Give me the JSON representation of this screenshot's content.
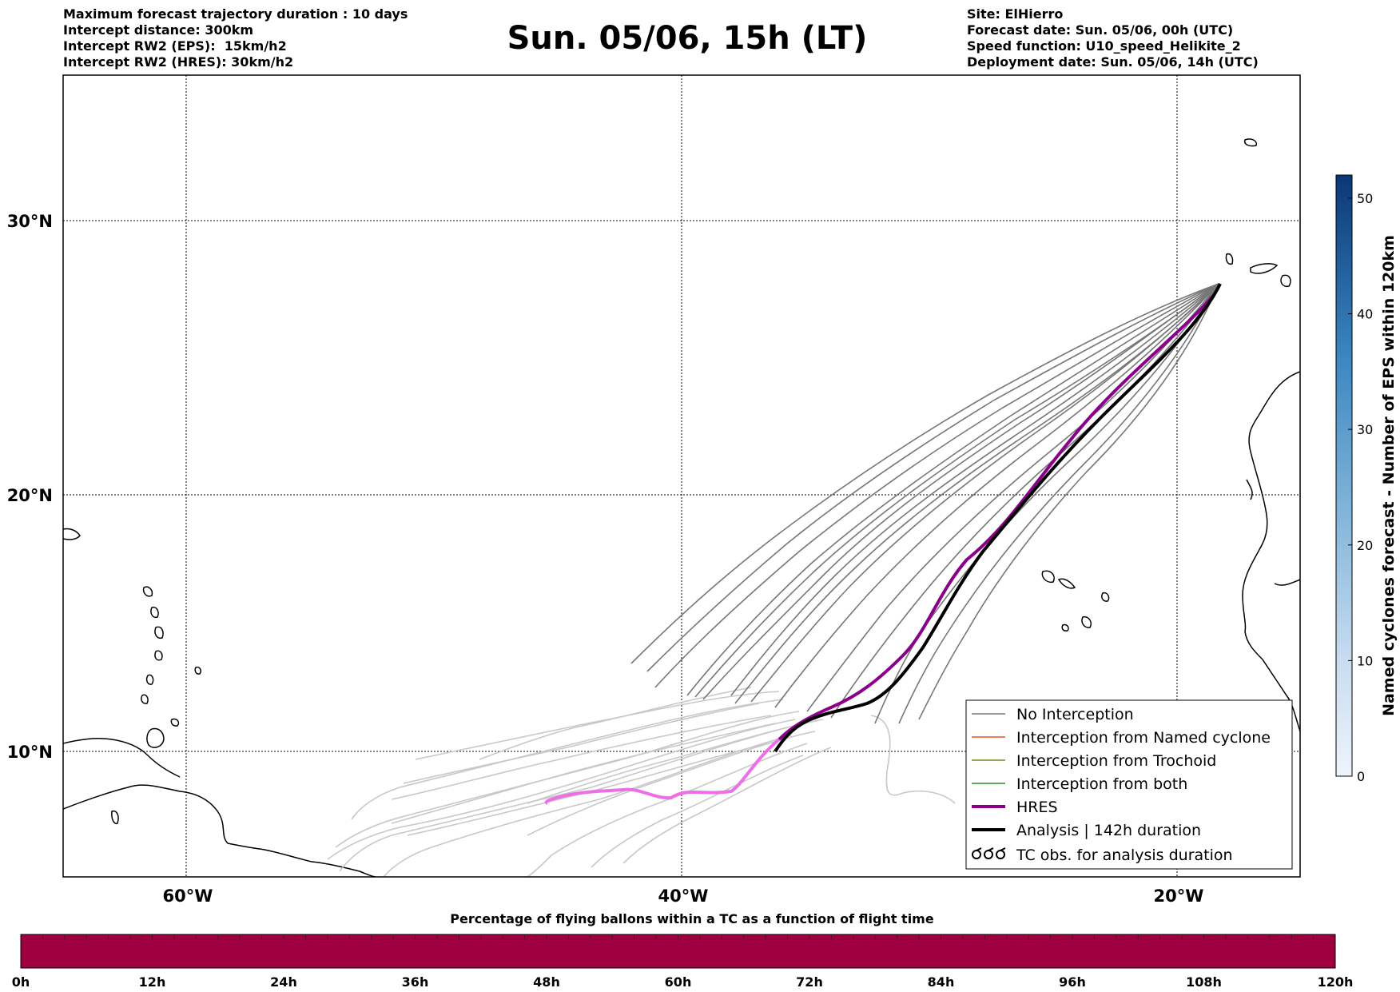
{
  "header": {
    "left": [
      "Maximum forecast trajectory duration : 10 days",
      "Intercept distance: 300km",
      "Intercept RW2 (EPS):  15km/h2",
      "Intercept RW2 (HRES): 30km/h2"
    ],
    "title": "Sun. 05/06, 15h (LT)",
    "right": [
      "Site: ElHierro",
      "Forecast date: Sun. 05/06, 00h (UTC)",
      "Speed function: U10_speed_Helikite_2",
      "Deployment date: Sun. 05/06, 14h (UTC)"
    ]
  },
  "map": {
    "lon_ticks": [
      "60°W",
      "40°W",
      "20°W"
    ],
    "lat_ticks": [
      "30°N",
      "20°N",
      "10°N"
    ],
    "extent": {
      "lon": [
        -65,
        -15
      ],
      "lat": [
        5.3,
        34.6
      ]
    }
  },
  "legend": {
    "items": [
      {
        "label": "No Interception",
        "color": "#777777",
        "width": 1.5,
        "icon": "thin-line"
      },
      {
        "label": "Interception from Named cyclone",
        "color": "#e8541e",
        "width": 1.5,
        "icon": "thin-line"
      },
      {
        "label": "Interception from Trochoid",
        "color": "#808020",
        "width": 1.5,
        "icon": "thin-line"
      },
      {
        "label": "Interception from both",
        "color": "#2a8a2a",
        "width": 1.5,
        "icon": "thin-line"
      },
      {
        "label": "HRES",
        "color": "#8b008b",
        "width": 4,
        "icon": "thick-line"
      },
      {
        "label": "Analysis | 142h duration",
        "color": "#000000",
        "width": 4,
        "icon": "thick-line"
      },
      {
        "label": "TC obs. for analysis duration",
        "color": "#000000",
        "width": 1,
        "icon": "tc-symbols"
      }
    ]
  },
  "colorbar": {
    "label": "Named cyclones forecast - Number of EPS within 120km",
    "ticks": [
      "0",
      "10",
      "20",
      "30",
      "40",
      "50"
    ],
    "range": [
      0,
      52
    ]
  },
  "timebar": {
    "title": "Percentage of flying ballons within a TC as a function of flight time",
    "ticks": [
      "0h",
      "12h",
      "24h",
      "36h",
      "48h",
      "60h",
      "72h",
      "84h",
      "96h",
      "108h",
      "120h"
    ],
    "fill_color": "#9e0040",
    "percent": 0
  }
}
